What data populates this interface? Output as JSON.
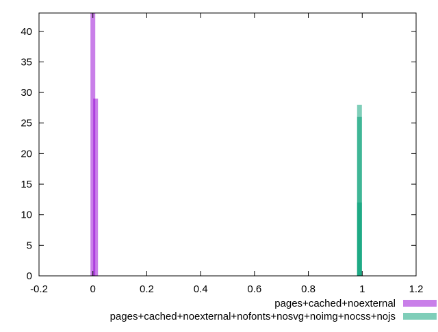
{
  "chart_data": {
    "type": "bar",
    "title": "",
    "xlabel": "",
    "ylabel": "",
    "xlim": [
      -0.2,
      1.2
    ],
    "ylim": [
      0,
      43
    ],
    "xticks": [
      -0.2,
      0,
      0.2,
      0.4,
      0.6,
      0.8,
      1,
      1.2
    ],
    "xtick_labels": [
      "-0.2",
      "0",
      "0.2",
      "0.4",
      "0.6",
      "0.8",
      "1",
      "1.2"
    ],
    "yticks": [
      0,
      5,
      10,
      15,
      20,
      25,
      30,
      35,
      40
    ],
    "ytick_labels": [
      "0",
      "5",
      "10",
      "15",
      "20",
      "25",
      "30",
      "35",
      "40"
    ],
    "grid": false,
    "legend_position": "bottom-right",
    "series": [
      {
        "name": "pages+cached+noexternal",
        "color": "#9400d3",
        "opacity": 0.5,
        "points": [
          {
            "x": 0.0,
            "y": 43
          },
          {
            "x": 0.01,
            "y": 29
          }
        ]
      },
      {
        "name": "pages+cached+noexternal+nofonts+nosvg+noimg+nocss+nojs",
        "color": "#009e73",
        "opacity": 0.5,
        "points": [
          {
            "x": 0.99,
            "y": 28
          },
          {
            "x": 0.99,
            "y": 26
          },
          {
            "x": 0.99,
            "y": 12
          }
        ]
      }
    ]
  }
}
